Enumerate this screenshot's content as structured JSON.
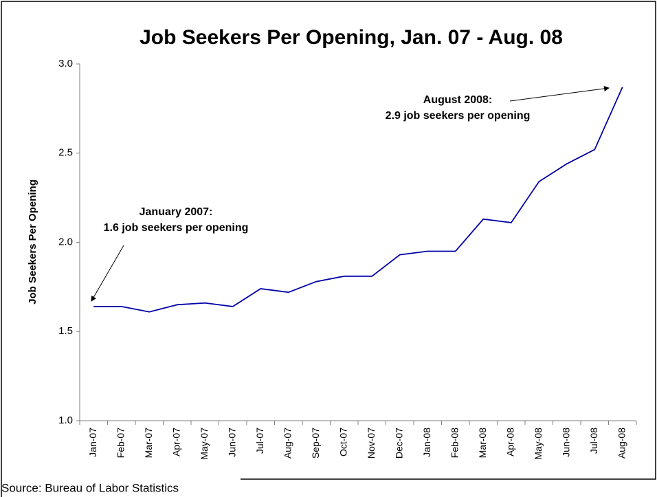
{
  "chart_data": {
    "type": "line",
    "title": "Job Seekers Per Opening, Jan. 07 - Aug. 08",
    "y_label": "Job Seekers Per Opening",
    "source": "Source: Bureau of Labor Statistics",
    "annotations": [
      [
        "January 2007:",
        "1.6 job seekers per opening"
      ],
      [
        "August 2008:",
        "2.9 job seekers per opening"
      ]
    ],
    "categories": [
      "Jan-07",
      "Feb-07",
      "Mar-07",
      "Apr-07",
      "May-07",
      "Jun-07",
      "Jul-07",
      "Aug-07",
      "Sep-07",
      "Oct-07",
      "Nov-07",
      "Dec-07",
      "Jan-08",
      "Feb-08",
      "Mar-08",
      "Apr-08",
      "May-08",
      "Jun-08",
      "Jul-08",
      "Aug-08"
    ],
    "series": [
      {
        "name": "Job Seekers Per Opening",
        "color": "#0000a8",
        "values": [
          1.64,
          1.64,
          1.61,
          1.65,
          1.66,
          1.64,
          1.74,
          1.72,
          1.78,
          1.81,
          1.81,
          1.93,
          1.95,
          1.95,
          2.13,
          2.11,
          2.34,
          2.44,
          2.52,
          2.87
        ]
      }
    ],
    "ylim": [
      1.0,
      3.0
    ],
    "yticks": [
      {
        "value": 1.0,
        "label": "1.0"
      },
      1.5,
      {
        "value": 2.0,
        "label": "2.0"
      },
      2.5,
      {
        "value": 3.0,
        "label": "3.0"
      }
    ],
    "grid": false
  }
}
